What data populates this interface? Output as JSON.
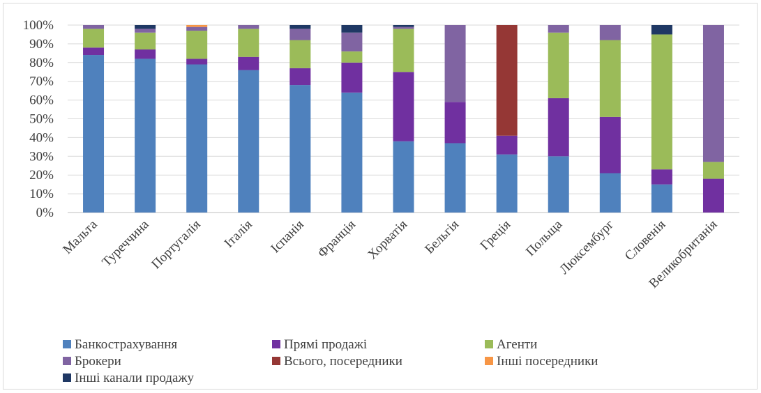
{
  "chart_data": {
    "type": "bar",
    "stacked": true,
    "percent": true,
    "categories": [
      "Мальта",
      "Туреччина",
      "Португалія",
      "Італія",
      "Іспанія",
      "Франція",
      "Хорватія",
      "Бельгія",
      "Греція",
      "Польща",
      "Люксембург",
      "Словенія",
      "Великобританія"
    ],
    "yticks": [
      "0%",
      "10%",
      "20%",
      "30%",
      "40%",
      "50%",
      "60%",
      "70%",
      "80%",
      "90%",
      "100%"
    ],
    "ylim": [
      0,
      100
    ],
    "grid": true,
    "legend_position": "bottom",
    "series": [
      {
        "name": "Банкострахування",
        "color": "#4f81bd",
        "values": [
          84,
          82,
          79,
          76,
          68,
          64,
          38,
          37,
          31,
          30,
          21,
          15,
          0
        ]
      },
      {
        "name": "Прямі продажі",
        "color": "#7030a0",
        "values": [
          4,
          5,
          3,
          7,
          9,
          16,
          37,
          22,
          10,
          31,
          30,
          8,
          18
        ]
      },
      {
        "name": "Агенти",
        "color": "#9bbb59",
        "values": [
          10,
          9,
          15,
          15,
          15,
          6,
          23,
          0,
          0,
          35,
          41,
          72,
          9
        ]
      },
      {
        "name": "Брокери",
        "color": "#8064a2",
        "values": [
          2,
          2,
          2,
          2,
          6,
          10,
          1,
          41,
          0,
          4,
          8,
          0,
          73
        ]
      },
      {
        "name": "Всього, посередники",
        "color": "#953735",
        "values": [
          0,
          0,
          0,
          0,
          0,
          0,
          0,
          0,
          59,
          0,
          0,
          0,
          0
        ]
      },
      {
        "name": "Інші посередники",
        "color": "#f79646",
        "values": [
          0,
          0,
          1,
          0,
          0,
          0,
          0,
          0,
          0,
          0,
          0,
          0,
          0
        ]
      },
      {
        "name": "Інші канали продажу",
        "color": "#1f3864",
        "values": [
          0,
          2,
          0,
          0,
          2,
          4,
          1,
          0,
          0,
          0,
          0,
          5,
          0
        ]
      }
    ]
  }
}
